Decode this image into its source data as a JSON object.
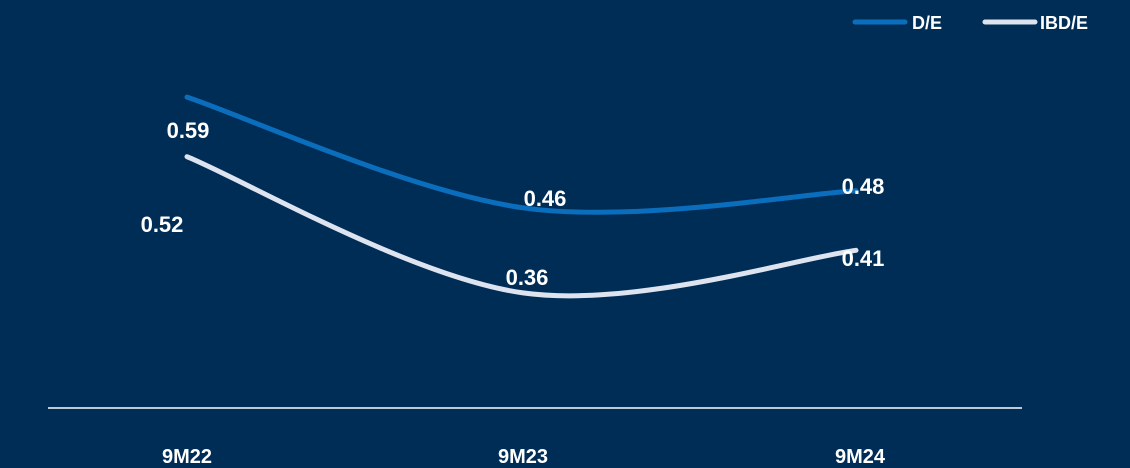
{
  "chart_data": {
    "type": "line",
    "categories": [
      "9M22",
      "9M23",
      "9M24"
    ],
    "series": [
      {
        "name": "D/E",
        "values": [
          0.59,
          0.46,
          0.48
        ],
        "labels": [
          "0.59",
          "0.46",
          "0.48"
        ],
        "color": "#0a6ebd"
      },
      {
        "name": "IBD/E",
        "values": [
          0.52,
          0.36,
          0.41
        ],
        "labels": [
          "0.52",
          "0.36",
          "0.41"
        ],
        "color": "#dde4f0"
      }
    ],
    "legend_position": "top-right",
    "ylim": [
      0.3,
      0.65
    ],
    "grid": false
  },
  "colors": {
    "background": "#002d56",
    "axis": "#ffffff",
    "text": "#ffffff"
  }
}
